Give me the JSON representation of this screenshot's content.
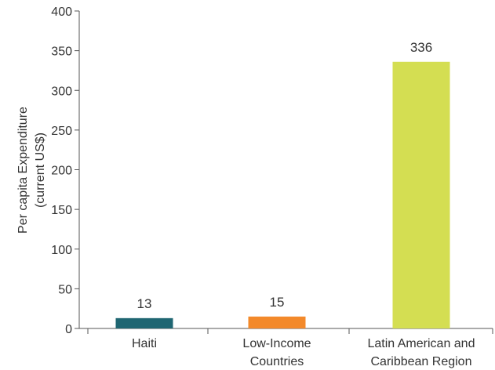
{
  "chart_data": {
    "type": "bar",
    "categories": [
      [
        "Haiti"
      ],
      [
        "Low-Income",
        "Countries"
      ],
      [
        "Latin American and",
        "Caribbean Region"
      ]
    ],
    "values": [
      13,
      15,
      336
    ],
    "data_labels": [
      "13",
      "15",
      "336"
    ],
    "colors": [
      "#1f6672",
      "#f3892a",
      "#d4de52"
    ],
    "title": "",
    "xlabel": "",
    "ylabel": [
      "Per capita Expenditure",
      "(current US$)"
    ],
    "ylim": [
      0,
      400
    ],
    "yticks": [
      0,
      50,
      100,
      150,
      200,
      250,
      300,
      350,
      400
    ],
    "grid": false,
    "legend": "none"
  }
}
